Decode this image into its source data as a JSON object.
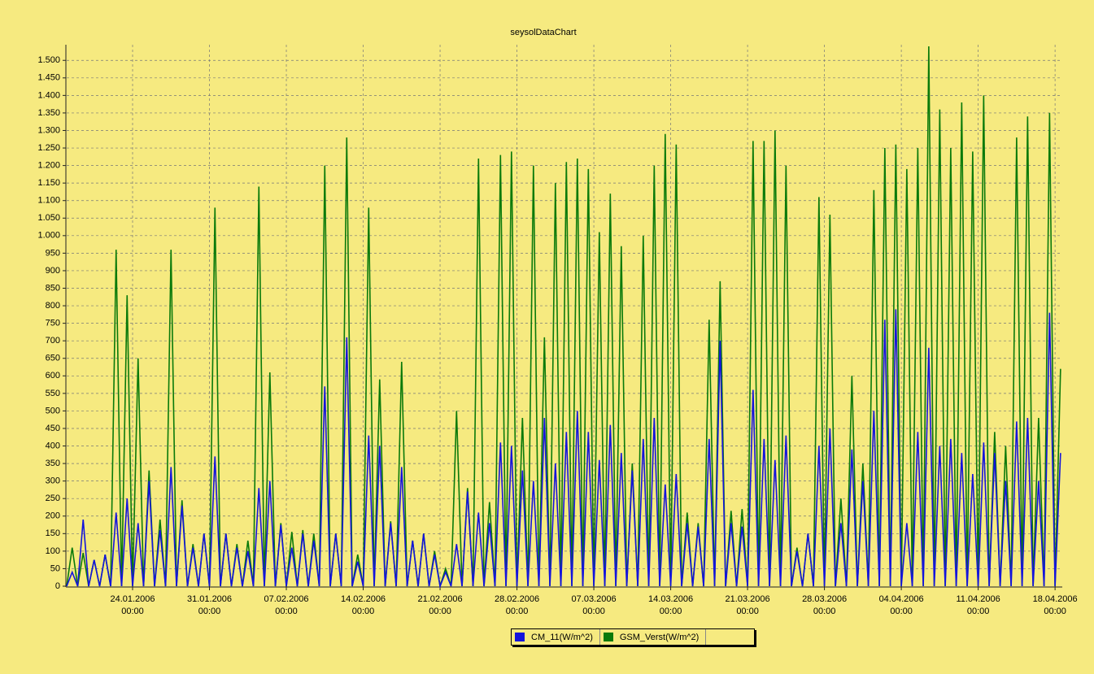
{
  "chart_data": {
    "type": "line",
    "title": "seysolDataChart",
    "x": [
      "18.01.2006 00:00",
      "18.01.2006 12:00",
      "19.01.2006 00:00",
      "19.01.2006 12:00",
      "20.01.2006 00:00",
      "20.01.2006 12:00",
      "21.01.2006 00:00",
      "21.01.2006 12:00",
      "22.01.2006 00:00",
      "22.01.2006 12:00",
      "23.01.2006 00:00",
      "23.01.2006 12:00",
      "24.01.2006 00:00",
      "24.01.2006 12:00",
      "25.01.2006 00:00",
      "25.01.2006 12:00",
      "26.01.2006 00:00",
      "26.01.2006 12:00",
      "27.01.2006 00:00",
      "27.01.2006 12:00",
      "28.01.2006 00:00",
      "28.01.2006 12:00",
      "29.01.2006 00:00",
      "29.01.2006 12:00",
      "30.01.2006 00:00",
      "30.01.2006 12:00",
      "31.01.2006 00:00",
      "31.01.2006 12:00",
      "01.02.2006 00:00",
      "01.02.2006 12:00",
      "02.02.2006 00:00",
      "02.02.2006 12:00",
      "03.02.2006 00:00",
      "03.02.2006 12:00",
      "04.02.2006 00:00",
      "04.02.2006 12:00",
      "05.02.2006 00:00",
      "05.02.2006 12:00",
      "06.02.2006 00:00",
      "06.02.2006 12:00",
      "07.02.2006 00:00",
      "07.02.2006 12:00",
      "08.02.2006 00:00",
      "08.02.2006 12:00",
      "09.02.2006 00:00",
      "09.02.2006 12:00",
      "10.02.2006 00:00",
      "10.02.2006 12:00",
      "11.02.2006 00:00",
      "11.02.2006 12:00",
      "12.02.2006 00:00",
      "12.02.2006 12:00",
      "13.02.2006 00:00",
      "13.02.2006 12:00",
      "14.02.2006 00:00",
      "14.02.2006 12:00",
      "15.02.2006 00:00",
      "15.02.2006 12:00",
      "16.02.2006 00:00",
      "16.02.2006 12:00",
      "17.02.2006 00:00",
      "17.02.2006 12:00",
      "18.02.2006 00:00",
      "18.02.2006 12:00",
      "19.02.2006 00:00",
      "19.02.2006 12:00",
      "20.02.2006 00:00",
      "20.02.2006 12:00",
      "21.02.2006 00:00",
      "21.02.2006 12:00",
      "22.02.2006 00:00",
      "22.02.2006 12:00",
      "23.02.2006 00:00",
      "23.02.2006 12:00",
      "24.02.2006 00:00",
      "24.02.2006 12:00",
      "25.02.2006 00:00",
      "25.02.2006 12:00",
      "26.02.2006 00:00",
      "26.02.2006 12:00",
      "27.02.2006 00:00",
      "27.02.2006 12:00",
      "28.02.2006 00:00",
      "28.02.2006 12:00",
      "01.03.2006 00:00",
      "01.03.2006 12:00",
      "02.03.2006 00:00",
      "02.03.2006 12:00",
      "03.03.2006 00:00",
      "03.03.2006 12:00",
      "04.03.2006 00:00",
      "04.03.2006 12:00",
      "05.03.2006 00:00",
      "05.03.2006 12:00",
      "06.03.2006 00:00",
      "06.03.2006 12:00",
      "07.03.2006 00:00",
      "07.03.2006 12:00",
      "08.03.2006 00:00",
      "08.03.2006 12:00",
      "09.03.2006 00:00",
      "09.03.2006 12:00",
      "10.03.2006 00:00",
      "10.03.2006 12:00",
      "11.03.2006 00:00",
      "11.03.2006 12:00",
      "12.03.2006 00:00",
      "12.03.2006 12:00",
      "13.03.2006 00:00",
      "13.03.2006 12:00",
      "14.03.2006 00:00",
      "14.03.2006 12:00",
      "15.03.2006 00:00",
      "15.03.2006 12:00",
      "16.03.2006 00:00",
      "16.03.2006 12:00",
      "17.03.2006 00:00",
      "17.03.2006 12:00",
      "18.03.2006 00:00",
      "18.03.2006 12:00",
      "19.03.2006 00:00",
      "19.03.2006 12:00",
      "20.03.2006 00:00",
      "20.03.2006 12:00",
      "21.03.2006 00:00",
      "21.03.2006 12:00",
      "22.03.2006 00:00",
      "22.03.2006 12:00",
      "23.03.2006 00:00",
      "23.03.2006 12:00",
      "24.03.2006 00:00",
      "24.03.2006 12:00",
      "25.03.2006 00:00",
      "25.03.2006 12:00",
      "26.03.2006 00:00",
      "26.03.2006 12:00",
      "27.03.2006 00:00",
      "27.03.2006 12:00",
      "28.03.2006 00:00",
      "28.03.2006 12:00",
      "29.03.2006 00:00",
      "29.03.2006 12:00",
      "30.03.2006 00:00",
      "30.03.2006 12:00",
      "31.03.2006 00:00",
      "31.03.2006 12:00",
      "01.04.2006 00:00",
      "01.04.2006 12:00",
      "02.04.2006 00:00",
      "02.04.2006 12:00",
      "03.04.2006 00:00",
      "03.04.2006 12:00",
      "04.04.2006 00:00",
      "04.04.2006 12:00",
      "05.04.2006 00:00",
      "05.04.2006 12:00",
      "06.04.2006 00:00",
      "06.04.2006 12:00",
      "07.04.2006 00:00",
      "07.04.2006 12:00",
      "08.04.2006 00:00",
      "08.04.2006 12:00",
      "09.04.2006 00:00",
      "09.04.2006 12:00",
      "10.04.2006 00:00",
      "10.04.2006 12:00",
      "11.04.2006 00:00",
      "11.04.2006 12:00",
      "12.04.2006 00:00",
      "12.04.2006 12:00",
      "13.04.2006 00:00",
      "13.04.2006 12:00",
      "14.04.2006 00:00",
      "14.04.2006 12:00",
      "15.04.2006 00:00",
      "15.04.2006 12:00",
      "16.04.2006 00:00",
      "16.04.2006 12:00",
      "17.04.2006 00:00",
      "17.04.2006 12:00",
      "18.04.2006 00:00",
      "18.04.2006 12:00"
    ],
    "series": [
      {
        "name": "CM_11(W/m^2)",
        "color": "#1414dc",
        "values": [
          0,
          40,
          0,
          190,
          0,
          75,
          0,
          90,
          0,
          210,
          0,
          250,
          0,
          180,
          0,
          300,
          0,
          160,
          0,
          340,
          0,
          230,
          0,
          110,
          0,
          150,
          0,
          370,
          0,
          150,
          0,
          110,
          0,
          100,
          0,
          280,
          0,
          300,
          0,
          175,
          0,
          110,
          0,
          150,
          0,
          130,
          0,
          570,
          0,
          150,
          0,
          710,
          0,
          70,
          0,
          430,
          0,
          400,
          0,
          180,
          0,
          340,
          0,
          130,
          0,
          150,
          0,
          90,
          0,
          40,
          0,
          120,
          0,
          270,
          0,
          210,
          0,
          180,
          0,
          410,
          0,
          400,
          0,
          330,
          0,
          300,
          0,
          480,
          0,
          350,
          0,
          440,
          0,
          500,
          0,
          440,
          0,
          360,
          0,
          460,
          0,
          380,
          0,
          330,
          0,
          420,
          0,
          480,
          0,
          290,
          0,
          320,
          0,
          180,
          0,
          170,
          0,
          420,
          0,
          700,
          0,
          180,
          0,
          170,
          0,
          560,
          0,
          420,
          0,
          360,
          0,
          430,
          0,
          100,
          0,
          150,
          0,
          400,
          0,
          450,
          0,
          180,
          0,
          390,
          0,
          300,
          0,
          500,
          0,
          760,
          0,
          790,
          0,
          180,
          0,
          440,
          0,
          680,
          0,
          400,
          0,
          420,
          0,
          380,
          0,
          320,
          0,
          410,
          0,
          380,
          0,
          300,
          0,
          470,
          0,
          480,
          0,
          300,
          0,
          780,
          0,
          380
        ]
      },
      {
        "name": "GSM_Verst(W/m^2)",
        "color": "#0a7a0a",
        "values": [
          0,
          110,
          0,
          95,
          0,
          75,
          0,
          90,
          0,
          960,
          0,
          830,
          0,
          650,
          0,
          330,
          0,
          190,
          0,
          960,
          0,
          245,
          0,
          120,
          0,
          150,
          0,
          1080,
          0,
          150,
          0,
          120,
          0,
          130,
          0,
          1140,
          0,
          610,
          0,
          180,
          0,
          155,
          0,
          160,
          0,
          150,
          0,
          1200,
          0,
          150,
          0,
          1280,
          0,
          90,
          0,
          1080,
          0,
          590,
          0,
          185,
          0,
          640,
          0,
          130,
          0,
          150,
          0,
          100,
          0,
          50,
          0,
          500,
          0,
          280,
          0,
          1220,
          0,
          240,
          0,
          1230,
          0,
          1240,
          0,
          480,
          0,
          1200,
          0,
          710,
          0,
          1150,
          0,
          1210,
          0,
          1220,
          0,
          1190,
          0,
          1010,
          0,
          1120,
          0,
          970,
          0,
          350,
          0,
          1000,
          0,
          1200,
          0,
          1290,
          0,
          1260,
          0,
          210,
          0,
          180,
          0,
          760,
          0,
          870,
          0,
          215,
          0,
          220,
          0,
          1270,
          0,
          1270,
          0,
          1300,
          0,
          1200,
          0,
          110,
          0,
          150,
          0,
          1110,
          0,
          1060,
          0,
          250,
          0,
          600,
          0,
          350,
          0,
          1130,
          0,
          1250,
          0,
          1260,
          0,
          1190,
          0,
          1250,
          0,
          1540,
          0,
          1360,
          0,
          1250,
          0,
          1380,
          0,
          1240,
          0,
          1400,
          0,
          440,
          0,
          400,
          0,
          1280,
          0,
          1340,
          0,
          480,
          0,
          1350,
          0,
          620
        ]
      }
    ],
    "xlim": [
      "18.01.2006 00:00",
      "18.04.2006 14:00"
    ],
    "xticks": [
      {
        "value": "24.01.2006 00:00",
        "label": "24.01.2006\n00:00"
      },
      {
        "value": "31.01.2006 00:00",
        "label": "31.01.2006\n00:00"
      },
      {
        "value": "07.02.2006 00:00",
        "label": "07.02.2006\n00:00"
      },
      {
        "value": "14.02.2006 00:00",
        "label": "14.02.2006\n00:00"
      },
      {
        "value": "21.02.2006 00:00",
        "label": "21.02.2006\n00:00"
      },
      {
        "value": "28.02.2006 00:00",
        "label": "28.02.2006\n00:00"
      },
      {
        "value": "07.03.2006 00:00",
        "label": "07.03.2006\n00:00"
      },
      {
        "value": "14.03.2006 00:00",
        "label": "14.03.2006\n00:00"
      },
      {
        "value": "21.03.2006 00:00",
        "label": "21.03.2006\n00:00"
      },
      {
        "value": "28.03.2006 00:00",
        "label": "28.03.2006\n00:00"
      },
      {
        "value": "04.04.2006 00:00",
        "label": "04.04.2006\n00:00"
      },
      {
        "value": "11.04.2006 00:00",
        "label": "11.04.2006\n00:00"
      },
      {
        "value": "18.04.2006 00:00",
        "label": "18.04.2006\n00:00"
      }
    ],
    "ylim": [
      0,
      1540
    ],
    "yticks": [
      0,
      50,
      100,
      150,
      200,
      250,
      300,
      350,
      400,
      450,
      500,
      550,
      600,
      650,
      700,
      750,
      800,
      850,
      900,
      950,
      {
        "value": 1000,
        "label": "1.000"
      },
      {
        "value": 1050,
        "label": "1.050"
      },
      {
        "value": 1100,
        "label": "1.100"
      },
      {
        "value": 1150,
        "label": "1.150"
      },
      {
        "value": 1200,
        "label": "1.200"
      },
      {
        "value": 1250,
        "label": "1.250"
      },
      {
        "value": 1300,
        "label": "1.300"
      },
      {
        "value": 1350,
        "label": "1.350"
      },
      {
        "value": 1400,
        "label": "1.400"
      },
      {
        "value": 1450,
        "label": "1.450"
      },
      {
        "value": 1500,
        "label": "1.500"
      }
    ],
    "grid": true,
    "legend": "bottom"
  }
}
